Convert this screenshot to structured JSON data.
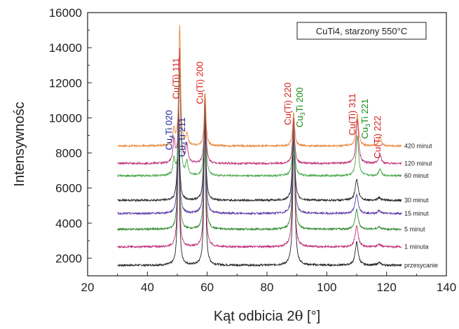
{
  "chart_data": {
    "type": "line",
    "title": "CuTi4, starzony 550°C",
    "xlabel_main": "Kąt odbicia 2",
    "xlabel_theta": "θ",
    "xlabel_unit": " [°]",
    "ylabel": "Intensywnośc",
    "xlim": [
      20,
      140
    ],
    "ylim": [
      1000,
      16000
    ],
    "x_ticks": [
      "20",
      "40",
      "60",
      "80",
      "100",
      "120",
      "140"
    ],
    "y_ticks": [
      "2000",
      "4000",
      "6000",
      "8000",
      "10000",
      "12000",
      "14000",
      "16000"
    ],
    "grid": false,
    "x_range": [
      30,
      125
    ],
    "series": [
      {
        "name": "przesycanie",
        "color": "#222222",
        "baseline": 1600,
        "peaks": [
          [
            50.4,
            7600,
            0.35
          ],
          [
            59.2,
            8200,
            0.35
          ],
          [
            89.0,
            8000,
            0.4
          ],
          [
            110.0,
            1300,
            0.6
          ],
          [
            117.5,
            150,
            0.6
          ]
        ]
      },
      {
        "name": "1 minuta",
        "color": "#c0307a",
        "baseline": 2650,
        "peaks": [
          [
            50.4,
            7000,
            0.35
          ],
          [
            59.2,
            7500,
            0.35
          ],
          [
            88.9,
            7100,
            0.4
          ],
          [
            110.0,
            1200,
            0.6
          ],
          [
            117.5,
            150,
            0.6
          ]
        ]
      },
      {
        "name": "5 minut",
        "color": "#2f8a2f",
        "baseline": 3650,
        "peaks": [
          [
            50.4,
            6500,
            0.35
          ],
          [
            59.2,
            7000,
            0.35
          ],
          [
            88.9,
            6300,
            0.4
          ],
          [
            110.0,
            1100,
            0.6
          ],
          [
            117.5,
            150,
            0.6
          ]
        ]
      },
      {
        "name": "15 minut",
        "color": "#5b3aa8",
        "baseline": 4550,
        "peaks": [
          [
            50.4,
            6200,
            0.35
          ],
          [
            59.2,
            6800,
            0.35
          ],
          [
            88.9,
            5500,
            0.4
          ],
          [
            110.0,
            1100,
            0.6
          ],
          [
            117.5,
            150,
            0.6
          ]
        ]
      },
      {
        "name": "30 minut",
        "color": "#222222",
        "baseline": 5300,
        "peaks": [
          [
            50.4,
            5700,
            0.35
          ],
          [
            59.2,
            6000,
            0.35
          ],
          [
            88.9,
            4700,
            0.4
          ],
          [
            110.0,
            1200,
            0.6
          ],
          [
            117.5,
            150,
            0.6
          ]
        ]
      },
      {
        "name": "60 minut",
        "color": "#48a848",
        "baseline": 6700,
        "peaks": [
          [
            48.9,
            900,
            0.4
          ],
          [
            50.8,
            6000,
            0.35
          ],
          [
            53.2,
            800,
            0.45
          ],
          [
            59.3,
            4500,
            0.35
          ],
          [
            88.9,
            3000,
            0.4
          ],
          [
            110.2,
            2300,
            0.5
          ],
          [
            117.8,
            400,
            0.5
          ]
        ]
      },
      {
        "name": "120 minut",
        "color": "#c0307a",
        "baseline": 7400,
        "peaks": [
          [
            48.9,
            1300,
            0.4
          ],
          [
            50.8,
            6500,
            0.35
          ],
          [
            53.2,
            1000,
            0.45
          ],
          [
            59.3,
            3800,
            0.35
          ],
          [
            88.9,
            2500,
            0.4
          ],
          [
            110.2,
            2500,
            0.5
          ],
          [
            117.8,
            500,
            0.5
          ]
        ]
      },
      {
        "name": "420 minut",
        "color": "#e8873a",
        "baseline": 8400,
        "peaks": [
          [
            48.9,
            900,
            0.4
          ],
          [
            50.8,
            6800,
            0.35
          ],
          [
            53.2,
            600,
            0.45
          ],
          [
            59.3,
            3000,
            0.35
          ],
          [
            88.9,
            1900,
            0.4
          ],
          [
            110.2,
            1800,
            0.5
          ],
          [
            117.8,
            500,
            0.5
          ]
        ]
      }
    ],
    "annotations": [
      {
        "parts": [
          [
            "Cu(Ti) 111",
            false
          ]
        ],
        "color": "#d42020",
        "x": 50.6,
        "y": 12250
      },
      {
        "parts": [
          [
            "Cu",
            false
          ],
          [
            "4",
            true
          ],
          [
            "Ti 020",
            false
          ]
        ],
        "color": "#1a2a9a",
        "x": 48.3,
        "y": 9300
      },
      {
        "parts": [
          [
            "Cu",
            false
          ],
          [
            "4",
            true
          ],
          [
            "Ti 211",
            false
          ]
        ],
        "color": "#1a2a9a",
        "x": 52.6,
        "y": 8900
      },
      {
        "parts": [
          [
            "Cu(Ti) 200",
            false
          ]
        ],
        "color": "#d42020",
        "x": 58.6,
        "y": 12000
      },
      {
        "parts": [
          [
            "Cu(Ti) 220",
            false
          ]
        ],
        "color": "#d42020",
        "x": 88.0,
        "y": 10800
      },
      {
        "parts": [
          [
            "Cu",
            false
          ],
          [
            "3",
            true
          ],
          [
            "Ti 200",
            false
          ]
        ],
        "color": "#1a8a1a",
        "x": 92.0,
        "y": 10600
      },
      {
        "parts": [
          [
            "Cu(Ti) 311",
            false
          ]
        ],
        "color": "#d42020",
        "x": 109.5,
        "y": 10200
      },
      {
        "parts": [
          [
            "Cu",
            false
          ],
          [
            "3",
            true
          ],
          [
            "Ti 221",
            false
          ]
        ],
        "color": "#1a8a1a",
        "x": 113.7,
        "y": 9950
      },
      {
        "parts": [
          [
            "Cu(Ti) 222",
            false
          ]
        ],
        "color": "#d42020",
        "x": 118.0,
        "y": 8900
      }
    ]
  }
}
